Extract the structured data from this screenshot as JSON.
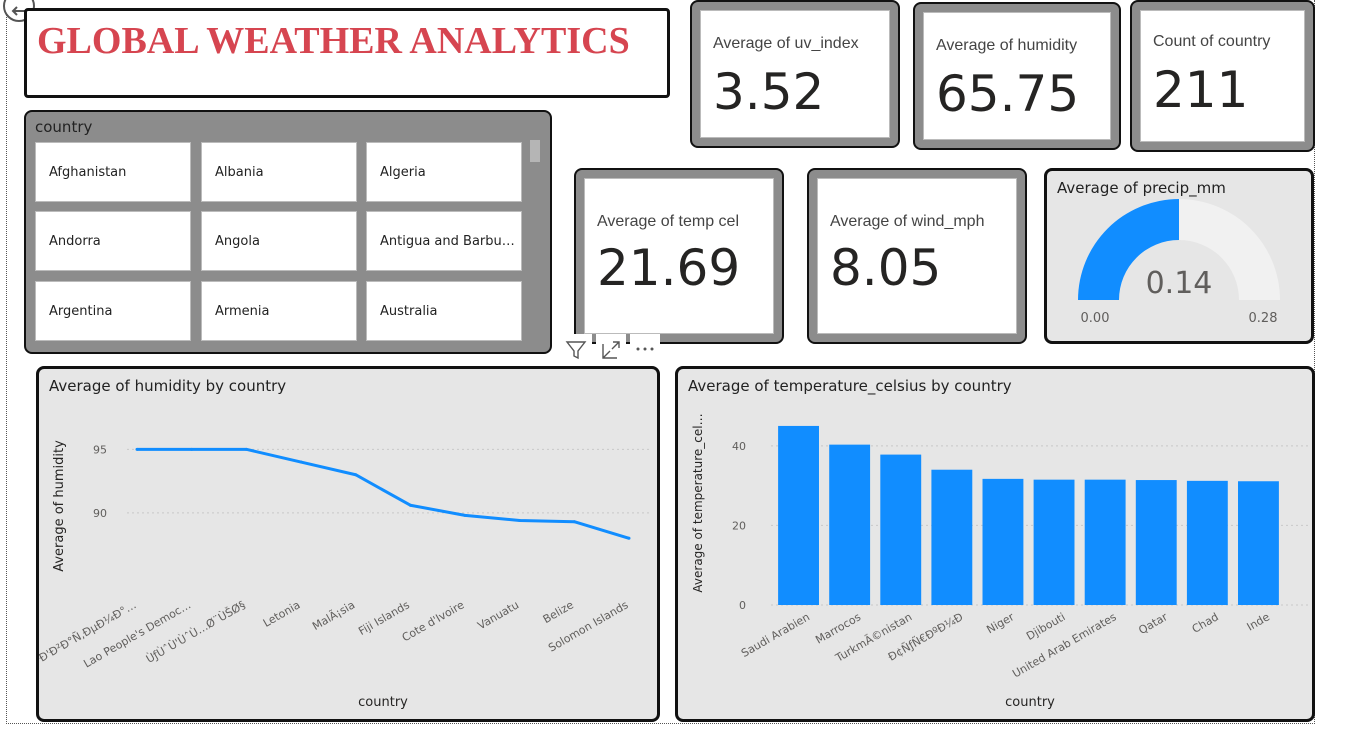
{
  "title": "GLOBAL WEATHER ANALYTICS",
  "cards": {
    "uv": {
      "label": "Average of uv_index",
      "value": "3.52"
    },
    "humidity": {
      "label": "Average of humidity",
      "value": "65.75"
    },
    "country_count": {
      "label": "Count of country",
      "value": "211"
    },
    "temp": {
      "label": "Average of temp cel",
      "value": "21.69"
    },
    "wind": {
      "label": "Average of wind_mph",
      "value": "8.05"
    }
  },
  "slicer": {
    "title": "country",
    "items": [
      "Afghanistan",
      "Albania",
      "Algeria",
      "Andorra",
      "Angola",
      "Antigua and Barbu…",
      "Argentina",
      "Armenia",
      "Australia"
    ]
  },
  "gauge": {
    "title": "Average of precip_mm",
    "value": 0.14,
    "value_label": "0.14",
    "min": 0,
    "min_label": "0.00",
    "max": 0.28,
    "max_label": "0.28",
    "fill_color": "#118dff",
    "track_color": "#f1f1f1"
  },
  "visual_header_icons": [
    "filter-icon",
    "focus-mode-icon",
    "more-options-icon"
  ],
  "chart_data": [
    {
      "type": "line",
      "title": "Average of humidity by country",
      "xlabel": "country",
      "ylabel": "Average of humidity",
      "categories": [
        "Ð'Ð²Ð°Ñ,ÐµÐ¼Ð°…",
        "Lao People's Democ…",
        "ÙƒÙˆÙ'ÙˆÙ…Ø¨ÙŠØ§",
        "Letonia",
        "MalÃ¡sia",
        "Fiji Islands",
        "Cote d'Ivoire",
        "Vanuatu",
        "Belize",
        "Solomon Islands"
      ],
      "values": [
        95,
        95,
        95,
        94,
        93,
        90.6,
        89.8,
        89.4,
        89.3,
        88
      ],
      "ylim": [
        84.4,
        96.6
      ],
      "yticks": [
        90,
        95
      ],
      "grid": true,
      "color": "#118dff"
    },
    {
      "type": "bar",
      "title": "Average of temperature_celsius by country",
      "xlabel": "country",
      "ylabel": "Average of temperature_cel…",
      "categories": [
        "Saudi Arabien",
        "Marrocos",
        "TurkmÃ©nistan",
        "Ð¢ÑƒÑ€ÐºÐ¼Ð",
        "Niger",
        "Djibouti",
        "United Arab Emirates",
        "Qatar",
        "Chad",
        "Inde"
      ],
      "values": [
        45,
        40.3,
        37.8,
        34,
        31.7,
        31.5,
        31.5,
        31.4,
        31.2,
        31.1
      ],
      "ylim": [
        0,
        48
      ],
      "yticks": [
        0,
        20,
        40
      ],
      "grid": true,
      "color": "#118dff"
    }
  ]
}
